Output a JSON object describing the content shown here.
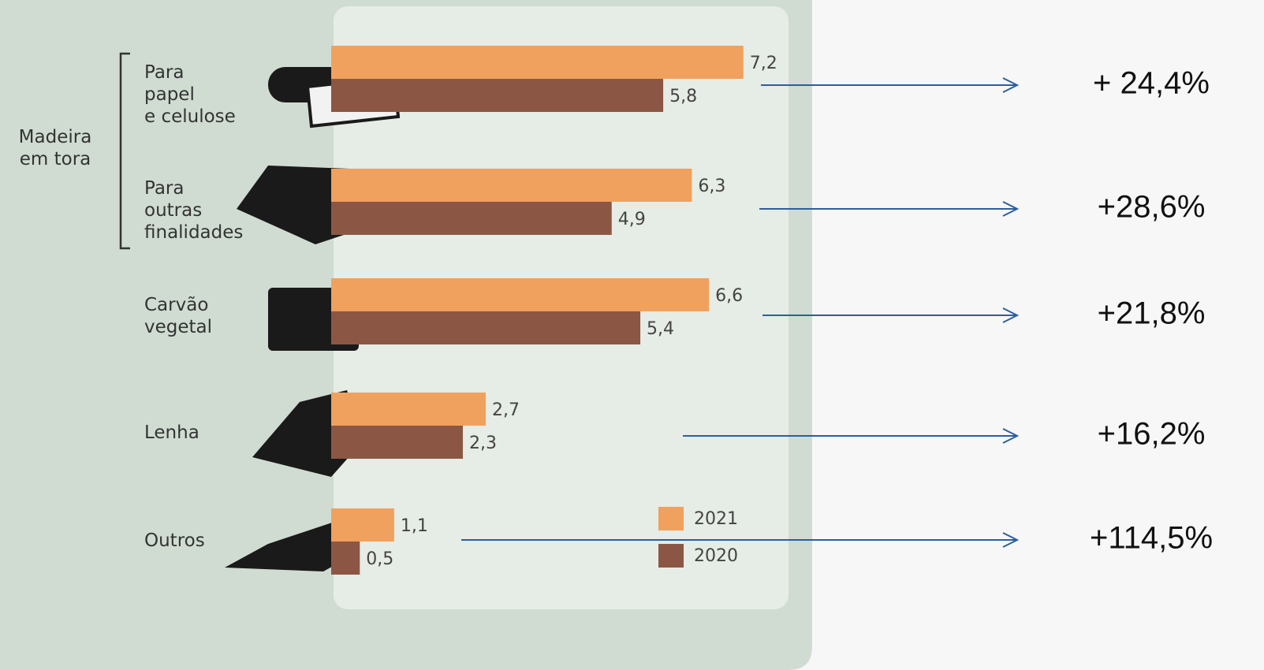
{
  "chart_data": {
    "type": "bar",
    "orientation": "horizontal",
    "group_label": "Madeira\nem tora",
    "categories": [
      "Para\npapel\ne celulose",
      "Para\noutras\nfinalidades",
      "Carvão\nvegetal",
      "Lenha",
      "Outros"
    ],
    "series": [
      {
        "name": "2021",
        "color": "#f0a15e",
        "values": [
          7.2,
          6.3,
          6.6,
          2.7,
          1.1
        ],
        "value_labels": [
          "7,2",
          "6,3",
          "6,6",
          "2,7",
          "1,1"
        ]
      },
      {
        "name": "2020",
        "color": "#8b5744",
        "values": [
          5.8,
          4.9,
          5.4,
          2.3,
          0.5
        ],
        "value_labels": [
          "5,8",
          "4,9",
          "5,4",
          "2,3",
          "0,5"
        ]
      }
    ],
    "annotations": [
      "+ 24,4%",
      "+28,6%",
      "+21,8%",
      "+16,2%",
      "+114,5%"
    ]
  }
}
